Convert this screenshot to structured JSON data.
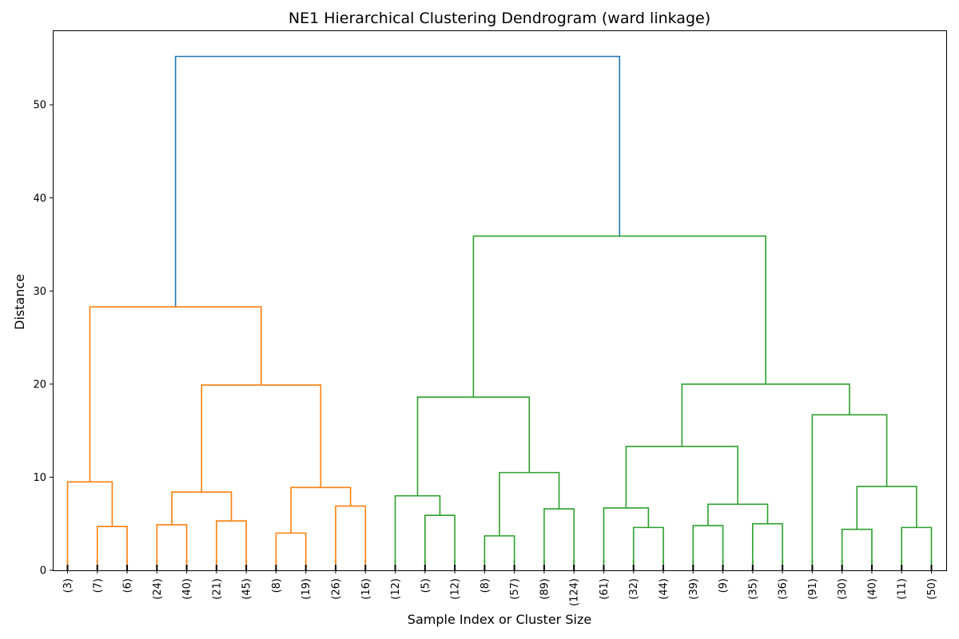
{
  "chart_data": {
    "type": "dendrogram",
    "title": "NE1 Hierarchical Clustering Dendrogram (ward linkage)",
    "xlabel": "Sample Index or Cluster Size",
    "ylabel": "Distance",
    "ylim": [
      0,
      58
    ],
    "yticks": [
      0,
      10,
      20,
      30,
      40,
      50
    ],
    "leaf_labels": [
      "(3)",
      "(7)",
      "(6)",
      "(24)",
      "(40)",
      "(21)",
      "(45)",
      "(8)",
      "(19)",
      "(26)",
      "(16)",
      "(12)",
      "(5)",
      "(12)",
      "(8)",
      "(57)",
      "(89)",
      "(124)",
      "(61)",
      "(32)",
      "(44)",
      "(39)",
      "(9)",
      "(35)",
      "(36)",
      "(91)",
      "(30)",
      "(40)",
      "(11)",
      "(50)"
    ],
    "colors": {
      "root": "#1f77b4",
      "cluster_1": "#ff7f0e",
      "cluster_2": "#2ca02c",
      "leaf_ticks": "#000000"
    },
    "merges": [
      {
        "left": "L0",
        "right": "L1",
        "height": 9.5,
        "color": "cluster_1"
      },
      {
        "left": "L1",
        "right": "L2",
        "height": 4.7,
        "color": "cluster_1"
      },
      {
        "left": "L3",
        "right": "L4",
        "height": 4.9,
        "color": "cluster_1"
      },
      {
        "left": "L5",
        "right": "L6",
        "height": 5.3,
        "color": "cluster_1"
      },
      {
        "left": "L7",
        "right": "L8",
        "height": 4.0,
        "color": "cluster_1"
      },
      {
        "left": "L9",
        "right": "L10",
        "height": 6.9,
        "color": "cluster_1"
      },
      {
        "left": "L12",
        "right": "L13",
        "height": 5.9,
        "color": "cluster_2"
      },
      {
        "left": "L14",
        "right": "L15",
        "height": 3.7,
        "color": "cluster_2"
      },
      {
        "left": "L16",
        "right": "L17",
        "height": 6.6,
        "color": "cluster_2"
      },
      {
        "left": "L19",
        "right": "L20",
        "height": 4.6,
        "color": "cluster_2"
      },
      {
        "left": "L21",
        "right": "L22",
        "height": 4.8,
        "color": "cluster_2"
      },
      {
        "left": "L23",
        "right": "L24",
        "height": 5.0,
        "color": "cluster_2"
      },
      {
        "left": "L26",
        "right": "L27",
        "height": 4.4,
        "color": "cluster_2"
      },
      {
        "left": "L28",
        "right": "L29",
        "height": 4.6,
        "color": "cluster_2"
      }
    ],
    "tree": {
      "h": 55.2,
      "c": "root",
      "children": [
        {
          "h": 28.3,
          "c": "cluster_1",
          "children": [
            {
              "h": 9.5,
              "c": "cluster_1",
              "children": [
                {
                  "leaf": 0
                },
                {
                  "h": 4.7,
                  "c": "cluster_1",
                  "children": [
                    {
                      "leaf": 1
                    },
                    {
                      "leaf": 2
                    }
                  ]
                }
              ]
            },
            {
              "h": 19.9,
              "c": "cluster_1",
              "children": [
                {
                  "h": 8.4,
                  "c": "cluster_1",
                  "children": [
                    {
                      "h": 4.9,
                      "c": "cluster_1",
                      "children": [
                        {
                          "leaf": 3
                        },
                        {
                          "leaf": 4
                        }
                      ]
                    },
                    {
                      "h": 5.3,
                      "c": "cluster_1",
                      "children": [
                        {
                          "leaf": 5
                        },
                        {
                          "leaf": 6
                        }
                      ]
                    }
                  ]
                },
                {
                  "h": 8.9,
                  "c": "cluster_1",
                  "children": [
                    {
                      "h": 4.0,
                      "c": "cluster_1",
                      "children": [
                        {
                          "leaf": 7
                        },
                        {
                          "leaf": 8
                        }
                      ]
                    },
                    {
                      "h": 6.9,
                      "c": "cluster_1",
                      "children": [
                        {
                          "leaf": 9
                        },
                        {
                          "leaf": 10
                        }
                      ]
                    }
                  ]
                }
              ]
            }
          ]
        },
        {
          "h": 35.9,
          "c": "cluster_2",
          "children": [
            {
              "h": 18.6,
              "c": "cluster_2",
              "children": [
                {
                  "h": 8.0,
                  "c": "cluster_2",
                  "children": [
                    {
                      "leaf": 11
                    },
                    {
                      "h": 5.9,
                      "c": "cluster_2",
                      "children": [
                        {
                          "leaf": 12
                        },
                        {
                          "leaf": 13
                        }
                      ]
                    }
                  ]
                },
                {
                  "h": 10.5,
                  "c": "cluster_2",
                  "children": [
                    {
                      "h": 3.7,
                      "c": "cluster_2",
                      "children": [
                        {
                          "leaf": 14
                        },
                        {
                          "leaf": 15
                        }
                      ]
                    },
                    {
                      "h": 6.6,
                      "c": "cluster_2",
                      "children": [
                        {
                          "leaf": 16
                        },
                        {
                          "leaf": 17
                        }
                      ]
                    }
                  ]
                }
              ]
            },
            {
              "h": 20.0,
              "c": "cluster_2",
              "children": [
                {
                  "h": 13.3,
                  "c": "cluster_2",
                  "children": [
                    {
                      "h": 6.7,
                      "c": "cluster_2",
                      "children": [
                        {
                          "leaf": 18
                        },
                        {
                          "h": 4.6,
                          "c": "cluster_2",
                          "children": [
                            {
                              "leaf": 19
                            },
                            {
                              "leaf": 20
                            }
                          ]
                        }
                      ]
                    },
                    {
                      "h": 7.1,
                      "c": "cluster_2",
                      "children": [
                        {
                          "h": 4.8,
                          "c": "cluster_2",
                          "children": [
                            {
                              "leaf": 21
                            },
                            {
                              "leaf": 22
                            }
                          ]
                        },
                        {
                          "h": 5.0,
                          "c": "cluster_2",
                          "children": [
                            {
                              "leaf": 23
                            },
                            {
                              "leaf": 24
                            }
                          ]
                        }
                      ]
                    }
                  ]
                },
                {
                  "h": 16.7,
                  "c": "cluster_2",
                  "children": [
                    {
                      "leaf": 25
                    },
                    {
                      "h": 9.0,
                      "c": "cluster_2",
                      "children": [
                        {
                          "h": 4.4,
                          "c": "cluster_2",
                          "children": [
                            {
                              "leaf": 26
                            },
                            {
                              "leaf": 27
                            }
                          ]
                        },
                        {
                          "h": 4.6,
                          "c": "cluster_2",
                          "children": [
                            {
                              "leaf": 28
                            },
                            {
                              "leaf": 29
                            }
                          ]
                        }
                      ]
                    }
                  ]
                }
              ]
            }
          ]
        }
      ]
    }
  }
}
